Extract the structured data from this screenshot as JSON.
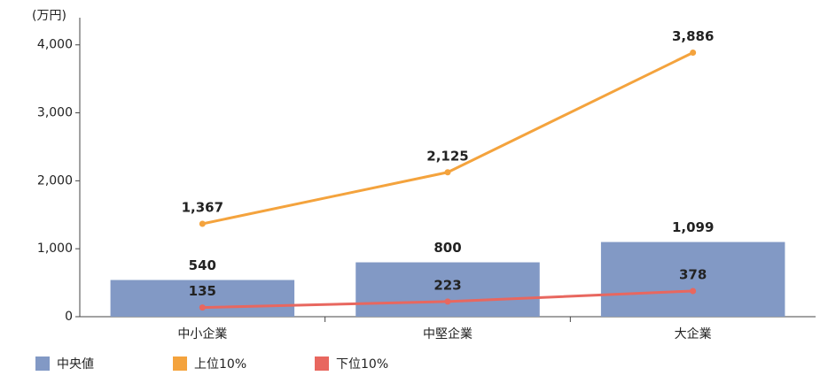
{
  "chart_data": {
    "type": "bar",
    "y_axis_label": "(万円)",
    "categories": [
      "中小企業",
      "中堅企業",
      "大企業"
    ],
    "series": [
      {
        "name": "中央値",
        "type": "bar",
        "color": "#8299c5",
        "values": [
          540,
          800,
          1099
        ],
        "value_labels": [
          "540",
          "800",
          "1,099"
        ]
      },
      {
        "name": "上位10%",
        "type": "line",
        "color": "#f4a33d",
        "values": [
          1367,
          2125,
          3886
        ],
        "value_labels": [
          "1,367",
          "2,125",
          "3,886"
        ]
      },
      {
        "name": "下位10%",
        "type": "line",
        "color": "#e8675f",
        "values": [
          135,
          223,
          378
        ]
      }
    ],
    "ylim": [
      0,
      4400
    ],
    "yticks": [
      0,
      {
        "value": 1000,
        "label": "1,000"
      },
      {
        "value": 2000,
        "label": "2,000"
      },
      {
        "value": 3000,
        "label": "3,000"
      },
      {
        "value": 4000,
        "label": "4,000"
      }
    ],
    "grid": false,
    "legend": "bottom"
  }
}
